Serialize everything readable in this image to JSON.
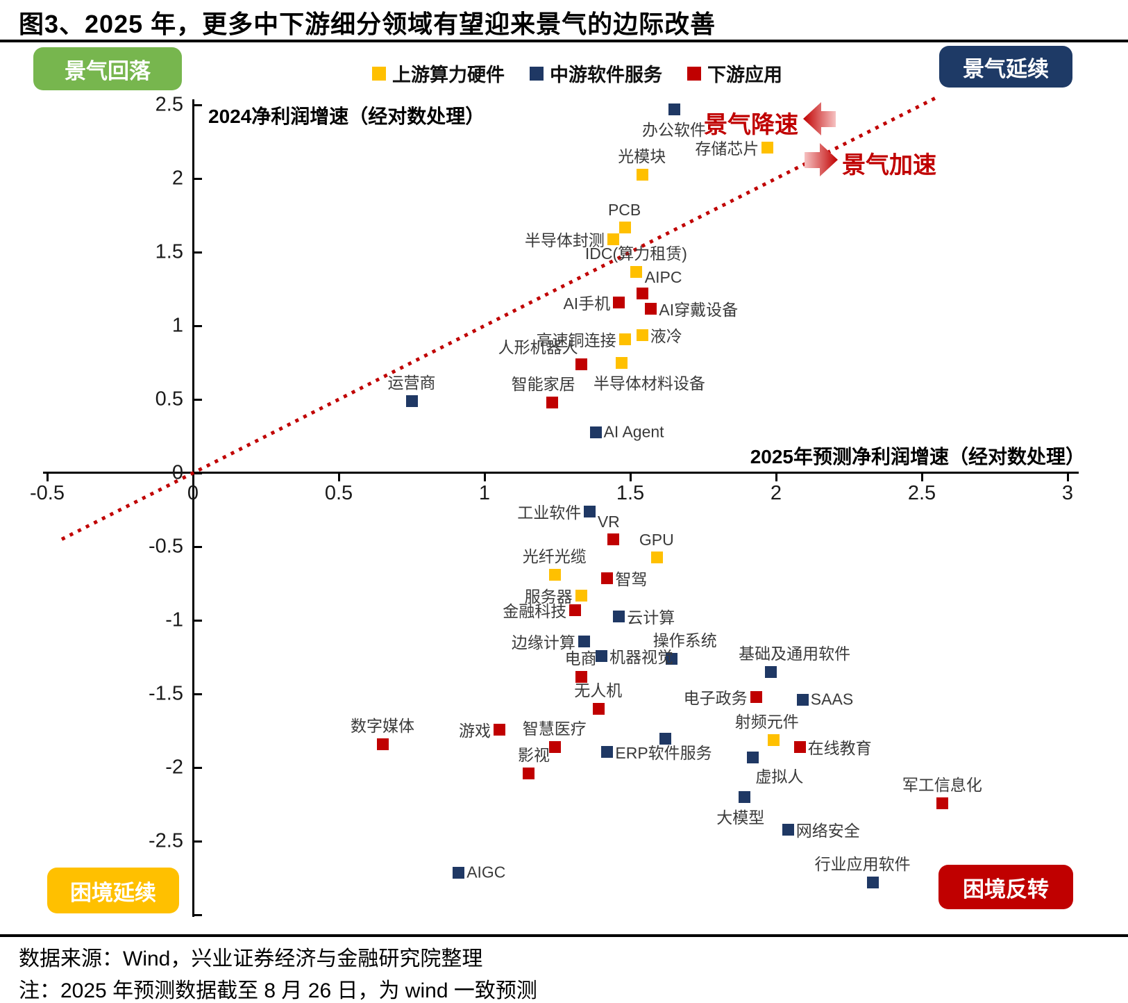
{
  "title": "图3、2025 年，更多中下游细分领域有望迎来景气的边际改善",
  "corner_labels": {
    "top_left": {
      "text": "景气回落",
      "color": "#77B64E"
    },
    "top_right": {
      "text": "景气延续",
      "color": "#1E3A66"
    },
    "bottom_left": {
      "text": "困境延续",
      "color": "#FFC000"
    },
    "bottom_right": {
      "text": "困境反转",
      "color": "#C00000"
    }
  },
  "annotations": {
    "decelerate": "景气降速",
    "accelerate": "景气加速",
    "color": "#C00000"
  },
  "legend": {
    "items": [
      {
        "label": "上游算力硬件",
        "color": "#FFC000"
      },
      {
        "label": "中游软件服务",
        "color": "#1F3864"
      },
      {
        "label": "下游应用",
        "color": "#C00000"
      }
    ]
  },
  "footer": {
    "source": "数据来源：Wind，兴业证券经济与金融研究院整理",
    "note": "注：2025 年预测数据截至 8 月 26 日，为 wind 一致预测"
  },
  "chart_data": {
    "type": "scatter",
    "xlabel": "2025年预测净利润增速（经对数处理）",
    "ylabel": "2024净利润增速（经对数处理）",
    "xlim": [
      -0.55,
      3.05
    ],
    "ylim": [
      -3.0,
      2.55
    ],
    "x_ticks": [
      "-0.5",
      "0",
      "0.5",
      "1",
      "1.5",
      "2",
      "2.5",
      "3"
    ],
    "y_ticks": [
      "2.5",
      "2",
      "1.5",
      "1",
      "0.5",
      "0",
      "-0.5",
      "-1",
      "-1.5",
      "-2",
      "-2.5"
    ],
    "grid": false,
    "legend_position": "top",
    "reference_line": {
      "color": "#C00000",
      "style": "dotted",
      "from": [
        -0.45,
        -0.45
      ],
      "to": [
        2.56,
        2.56
      ]
    },
    "series": [
      {
        "name": "上游算力硬件",
        "color": "#FFC000",
        "points": [
          {
            "label": "存储芯片",
            "x": 1.97,
            "y": 2.21,
            "label_pos": "left"
          },
          {
            "label": "光模块",
            "x": 1.54,
            "y": 2.03,
            "label_pos": "above"
          },
          {
            "label": "PCB",
            "x": 1.48,
            "y": 1.67,
            "label_pos": "above"
          },
          {
            "label": "半导体封测",
            "x": 1.44,
            "y": 1.59,
            "label_pos": "left"
          },
          {
            "label": "IDC(算力租赁)",
            "x": 1.52,
            "y": 1.37,
            "label_pos": "above"
          },
          {
            "label": "液冷",
            "x": 1.54,
            "y": 0.94,
            "label_pos": "right"
          },
          {
            "label": "高速铜连接",
            "x": 1.48,
            "y": 0.91,
            "label_pos": "left"
          },
          {
            "label": "半导体材料设备",
            "x": 1.47,
            "y": 0.75,
            "label_pos": "below",
            "dx": 40
          },
          {
            "label": "GPU",
            "x": 1.59,
            "y": -0.57,
            "label_pos": "above"
          },
          {
            "label": "光纤光缆",
            "x": 1.24,
            "y": -0.69,
            "label_pos": "above"
          },
          {
            "label": "服务器",
            "x": 1.33,
            "y": -0.83,
            "label_pos": "left"
          },
          {
            "label": "射频元件",
            "x": 1.99,
            "y": -1.81,
            "label_pos": "above",
            "dx": -9
          }
        ]
      },
      {
        "name": "中游软件服务",
        "color": "#1F3864",
        "points": [
          {
            "label": "办公软件",
            "x": 1.65,
            "y": 2.47,
            "label_pos": "below"
          },
          {
            "label": "运营商",
            "x": 0.75,
            "y": 0.49,
            "label_pos": "above"
          },
          {
            "label": "AI Agent",
            "x": 1.38,
            "y": 0.28,
            "label_pos": "right"
          },
          {
            "label": "工业软件",
            "x": 1.36,
            "y": -0.26,
            "label_pos": "left"
          },
          {
            "label": "云计算",
            "x": 1.46,
            "y": -0.97,
            "label_pos": "right"
          },
          {
            "label": "边缘计算",
            "x": 1.34,
            "y": -1.14,
            "label_pos": "left"
          },
          {
            "label": "机器视觉",
            "x": 1.4,
            "y": -1.24,
            "label_pos": "right"
          },
          {
            "label": "操作系统",
            "x": 1.64,
            "y": -1.26,
            "label_pos": "above",
            "dx": 20
          },
          {
            "label": "ERP软件服务",
            "x": 1.42,
            "y": -1.89,
            "label_pos": "right"
          },
          {
            "label": "",
            "x": 1.62,
            "y": -1.8,
            "label_pos": "right"
          },
          {
            "label": "基础及通用软件",
            "x": 1.98,
            "y": -1.35,
            "label_pos": "above",
            "dx": 35
          },
          {
            "label": "SAAS",
            "x": 2.09,
            "y": -1.54,
            "label_pos": "right"
          },
          {
            "label": "虚拟人",
            "x": 1.92,
            "y": -1.93,
            "label_pos": "below-right"
          },
          {
            "label": "大模型",
            "x": 1.89,
            "y": -2.2,
            "label_pos": "below",
            "dx": -5
          },
          {
            "label": "网络安全",
            "x": 2.04,
            "y": -2.42,
            "label_pos": "right"
          },
          {
            "label": "行业应用软件",
            "x": 2.33,
            "y": -2.78,
            "label_pos": "above",
            "dx": -14
          },
          {
            "label": "AIGC",
            "x": 0.91,
            "y": -2.71,
            "label_pos": "right"
          }
        ]
      },
      {
        "name": "下游应用",
        "color": "#C00000",
        "points": [
          {
            "label": "AIPC",
            "x": 1.54,
            "y": 1.22,
            "label_pos": "above-right"
          },
          {
            "label": "AI手机",
            "x": 1.46,
            "y": 1.16,
            "label_pos": "left"
          },
          {
            "label": "AI穿戴设备",
            "x": 1.57,
            "y": 1.12,
            "label_pos": "right"
          },
          {
            "label": "人形机器人",
            "x": 1.33,
            "y": 0.74,
            "label_pos": "above-left"
          },
          {
            "label": "智能家居",
            "x": 1.23,
            "y": 0.48,
            "label_pos": "above",
            "dx": -12
          },
          {
            "label": "VR",
            "x": 1.44,
            "y": -0.45,
            "label_pos": "above",
            "dx": -6
          },
          {
            "label": "智驾",
            "x": 1.42,
            "y": -0.71,
            "label_pos": "right"
          },
          {
            "label": "金融科技",
            "x": 1.31,
            "y": -0.93,
            "label_pos": "left"
          },
          {
            "label": "电商",
            "x": 1.33,
            "y": -1.38,
            "label_pos": "above"
          },
          {
            "label": "无人机",
            "x": 1.39,
            "y": -1.6,
            "label_pos": "above"
          },
          {
            "label": "游戏",
            "x": 1.05,
            "y": -1.74,
            "label_pos": "left"
          },
          {
            "label": "数字媒体",
            "x": 0.65,
            "y": -1.84,
            "label_pos": "above"
          },
          {
            "label": "智慧医疗",
            "x": 1.24,
            "y": -1.86,
            "label_pos": "above"
          },
          {
            "label": "影视",
            "x": 1.15,
            "y": -2.04,
            "label_pos": "above",
            "dx": 8
          },
          {
            "label": "电子政务",
            "x": 1.93,
            "y": -1.52,
            "label_pos": "left"
          },
          {
            "label": "在线教育",
            "x": 2.08,
            "y": -1.86,
            "label_pos": "right"
          },
          {
            "label": "军工信息化",
            "x": 2.57,
            "y": -2.24,
            "label_pos": "above"
          }
        ]
      }
    ]
  }
}
